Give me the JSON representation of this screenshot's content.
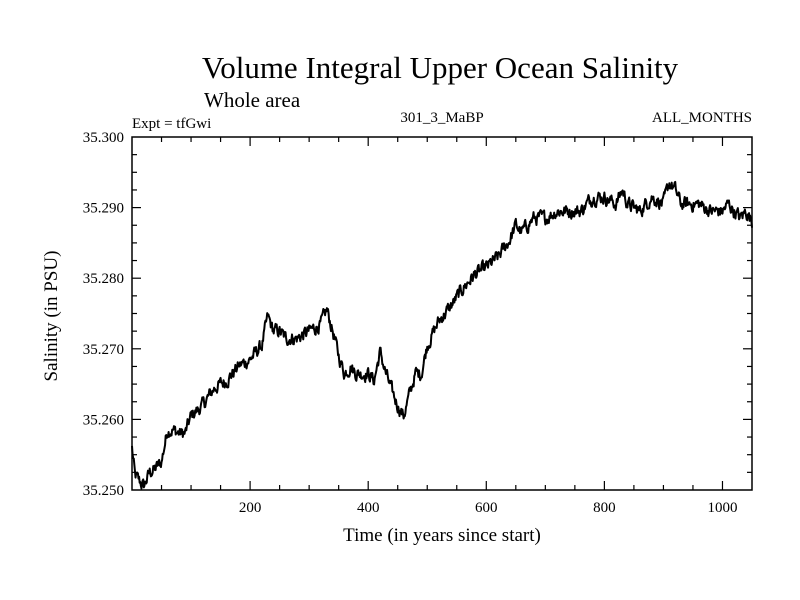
{
  "chart_data": {
    "type": "line",
    "title": "Volume Integral Upper Ocean Salinity",
    "subtitle": "Whole area",
    "header_left": "Expt = tfGwi",
    "header_center": "301_3_MaBP",
    "header_right": "ALL_MONTHS",
    "xlabel": "Time (in years since start)",
    "ylabel": "Salinity (in PSU)",
    "xlim": [
      0,
      1050
    ],
    "ylim": [
      35.25,
      35.3
    ],
    "xticks": [
      200,
      400,
      600,
      800,
      1000
    ],
    "yticks": [
      35.25,
      35.26,
      35.27,
      35.28,
      35.29,
      35.3
    ],
    "ytick_labels": [
      "35.250",
      "35.260",
      "35.270",
      "35.280",
      "35.290",
      "35.300"
    ],
    "grid": false,
    "series": [
      {
        "name": "salinity",
        "color": "#000000",
        "x": [
          0,
          5,
          10,
          15,
          20,
          30,
          40,
          50,
          60,
          70,
          80,
          90,
          100,
          120,
          140,
          160,
          180,
          200,
          220,
          230,
          240,
          250,
          260,
          280,
          300,
          320,
          330,
          340,
          350,
          360,
          370,
          380,
          400,
          410,
          420,
          430,
          440,
          450,
          460,
          470,
          480,
          490,
          500,
          520,
          540,
          560,
          580,
          600,
          620,
          640,
          650,
          660,
          680,
          700,
          720,
          740,
          760,
          780,
          800,
          820,
          830,
          840,
          860,
          880,
          900,
          910,
          920,
          930,
          940,
          960,
          980,
          1000,
          1010,
          1020,
          1030,
          1040,
          1050
        ],
        "y": [
          35.256,
          35.252,
          35.2515,
          35.251,
          35.2505,
          35.2525,
          35.253,
          35.254,
          35.2585,
          35.2585,
          35.258,
          35.258,
          35.2605,
          35.262,
          35.2645,
          35.2655,
          35.2675,
          35.2685,
          35.2705,
          35.2745,
          35.2725,
          35.2725,
          35.2715,
          35.2715,
          35.2725,
          35.2735,
          35.2755,
          35.2725,
          35.269,
          35.2665,
          35.2675,
          35.2665,
          35.2665,
          35.2655,
          35.2695,
          35.2665,
          35.264,
          35.262,
          35.2605,
          35.2635,
          35.2665,
          35.2665,
          35.2705,
          35.274,
          35.276,
          35.2785,
          35.2805,
          35.2815,
          35.283,
          35.2855,
          35.2875,
          35.2865,
          35.2885,
          35.2885,
          35.2895,
          35.2895,
          35.2895,
          35.2915,
          35.2915,
          35.2905,
          35.2925,
          35.2905,
          35.2895,
          35.2915,
          35.2905,
          35.2935,
          35.2925,
          35.2905,
          35.2905,
          35.2905,
          35.2895,
          35.2895,
          35.2905,
          35.2895,
          35.2885,
          35.2895,
          35.288
        ]
      }
    ]
  }
}
